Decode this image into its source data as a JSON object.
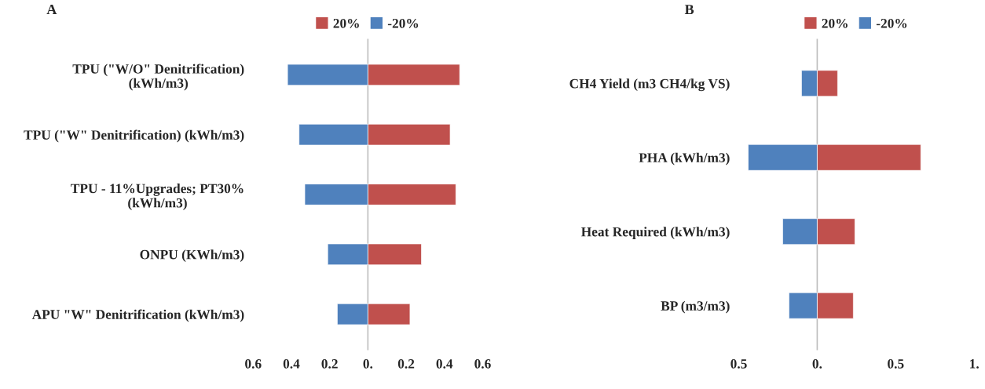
{
  "chart_data": [
    {
      "type": "bar",
      "orientation": "horizontal",
      "stacked": true,
      "title": "A",
      "legend": "top",
      "categories": [
        "TPU (\"W/O\" Denitrification)\n(kWh/m3)",
        "TPU (\"W\" Denitrification) (kWh/m3)",
        "TPU - 11%Upgrades; PT30%\n(kWh/m3)",
        "ONPU (KWh/m3)",
        "APU \"W\" Denitrification (kWh/m3)"
      ],
      "series": [
        {
          "name": "20%",
          "color": "#c0504d",
          "values": [
            0.48,
            0.43,
            0.46,
            0.28,
            0.22
          ]
        },
        {
          "name": "-20%",
          "color": "#4f81bd",
          "values": [
            -0.42,
            -0.36,
            -0.33,
            -0.21,
            -0.16
          ]
        }
      ],
      "xlim": [
        -0.6,
        0.6
      ],
      "xticks": [
        {
          "value": -0.6,
          "label": "0.6"
        },
        {
          "value": -0.4,
          "label": "0.4"
        },
        {
          "value": -0.2,
          "label": "0.2"
        },
        {
          "value": 0,
          "label": "0."
        },
        0.2,
        0.4,
        0.6
      ]
    },
    {
      "type": "bar",
      "orientation": "horizontal",
      "stacked": true,
      "title": "B",
      "legend": "top",
      "categories": [
        "CH4 Yield (m3 CH4/kg VS)",
        "PHA (kWh/m3)",
        "Heat Required (kWh/m3)",
        "BP (m3/m3)"
      ],
      "series": [
        {
          "name": "20%",
          "color": "#c0504d",
          "values": [
            0.13,
            0.66,
            0.24,
            0.23
          ]
        },
        {
          "name": "-20%",
          "color": "#4f81bd",
          "values": [
            -0.1,
            -0.44,
            -0.22,
            -0.18
          ]
        }
      ],
      "xlim": [
        -0.5,
        1.0
      ],
      "xticks": [
        {
          "value": -0.5,
          "label": "0.5"
        },
        {
          "value": 0,
          "label": "0."
        },
        0.5,
        {
          "value": 1.0,
          "label": "1."
        }
      ]
    }
  ]
}
